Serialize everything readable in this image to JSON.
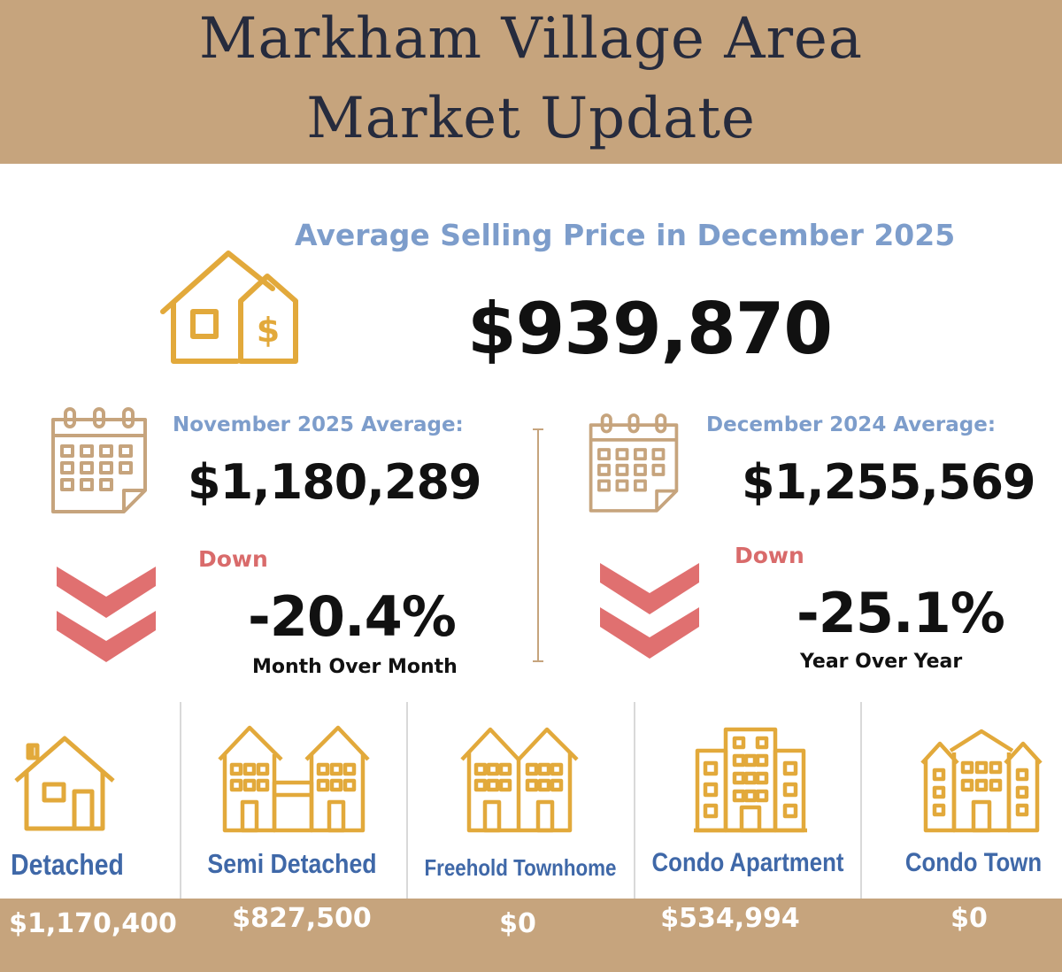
{
  "header": {
    "title_line1": "Markham Village Area",
    "title_line2": "Market Update"
  },
  "summary": {
    "subtitle": "Average Selling Price in December 2025",
    "price": "$939,870",
    "icon": "house-dollar-icon"
  },
  "month_compare": {
    "label": "November 2025 Average:",
    "value": "$1,180,289",
    "direction": "Down",
    "change": "-20.4%",
    "period": "Month Over Month"
  },
  "year_compare": {
    "label": "December 2024 Average:",
    "value": "$1,255,569",
    "direction": "Down",
    "change": "-25.1%",
    "period": "Year Over Year"
  },
  "property_types": [
    {
      "label": "Detached",
      "price": "$1,170,400",
      "icon": "detached-house-icon"
    },
    {
      "label": "Semi Detached",
      "price": "$827,500",
      "icon": "semi-detached-house-icon"
    },
    {
      "label": "Freehold Townhome",
      "price": "$0",
      "icon": "townhome-icon"
    },
    {
      "label": "Condo Apartment",
      "price": "$534,994",
      "icon": "condo-apartment-icon"
    },
    {
      "label": "Condo Town",
      "price": "$0",
      "icon": "condo-town-icon"
    }
  ],
  "colors": {
    "gold": "#c6a47d",
    "icon_gold": "#e2a93b",
    "navy_text": "#262b3d",
    "blue_label": "#7d9dcb",
    "type_label_blue": "#3f68a8",
    "down_red": "#d96b6b"
  }
}
